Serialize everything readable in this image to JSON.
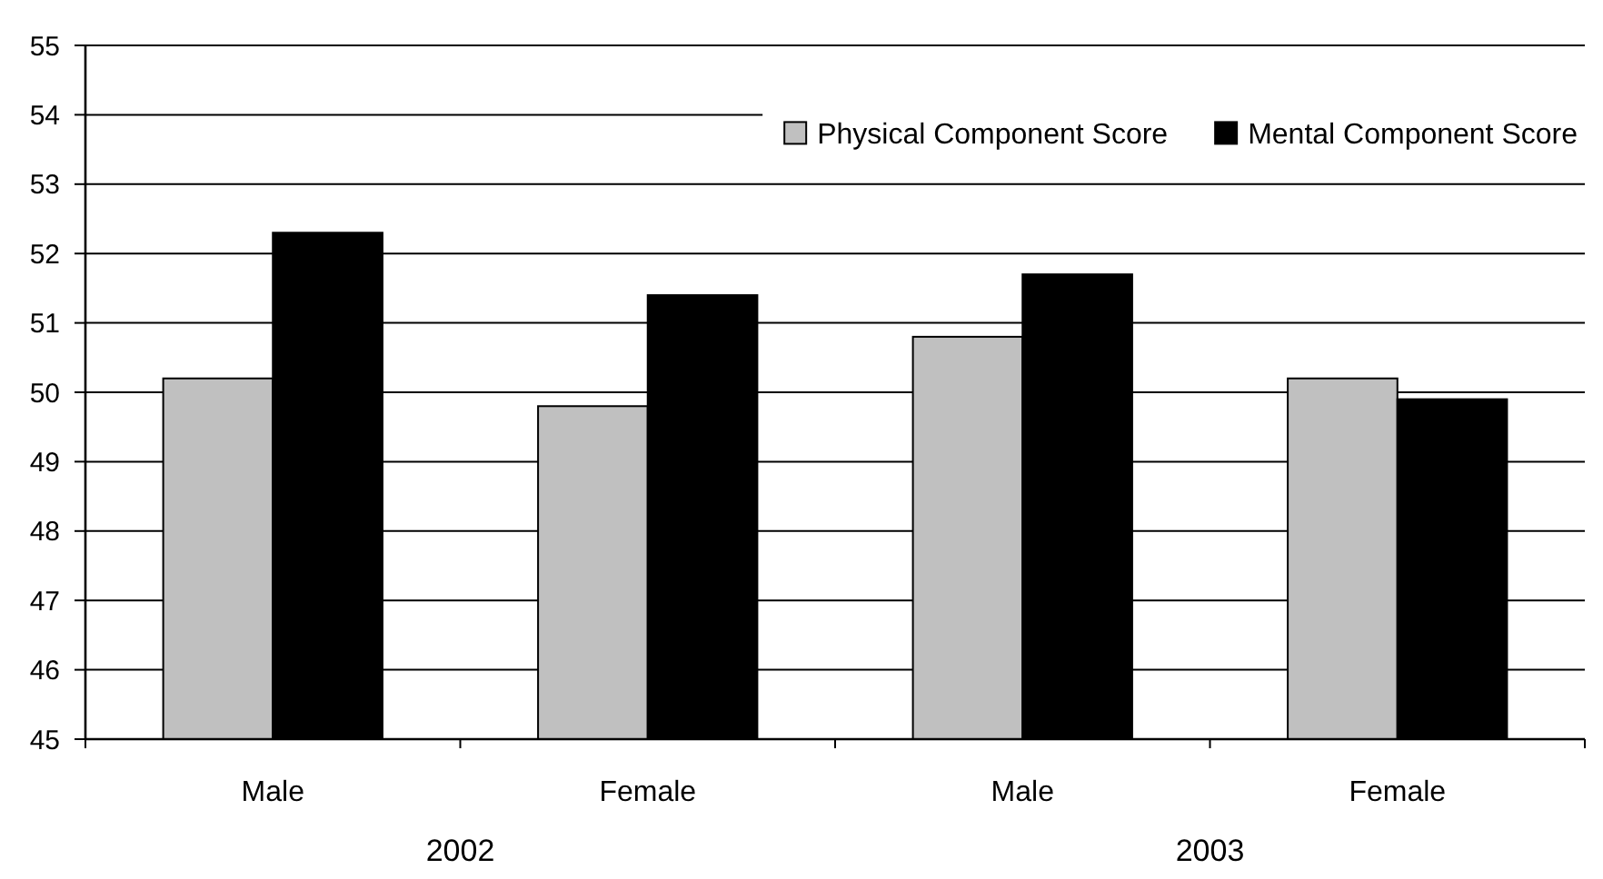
{
  "chart_data": {
    "type": "bar",
    "categories": [
      "Male",
      "Female",
      "Male",
      "Female"
    ],
    "series": [
      {
        "name": "Physical Component Score",
        "color": "#c0c0c0",
        "values": [
          50.2,
          49.8,
          50.8,
          50.2
        ]
      },
      {
        "name": "Mental Component Score",
        "color": "#000000",
        "values": [
          52.3,
          51.4,
          51.7,
          49.9
        ]
      }
    ],
    "ylim": [
      45,
      55
    ],
    "yticks": [
      45,
      46,
      47,
      48,
      49,
      50,
      51,
      52,
      53,
      54,
      55
    ],
    "grid": "y",
    "legend": "top right",
    "annotations": [
      "2002",
      "2003"
    ]
  }
}
